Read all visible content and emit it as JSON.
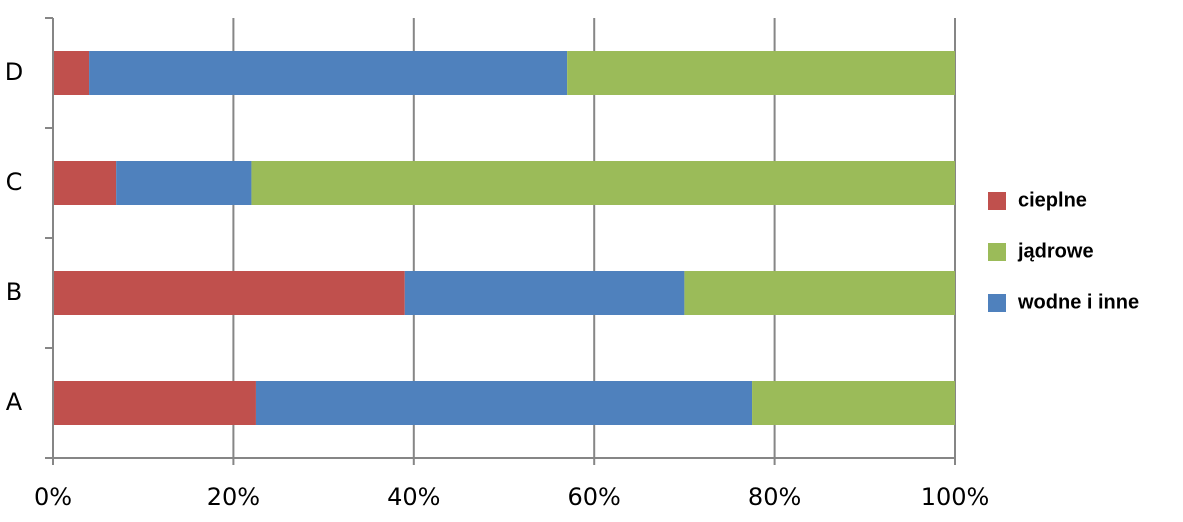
{
  "chart_data": {
    "type": "bar",
    "orientation": "horizontal",
    "stacked": true,
    "categories": [
      "A",
      "B",
      "C",
      "D"
    ],
    "series": [
      {
        "name": "cieplne",
        "color": "#c0504d",
        "values": [
          22.5,
          39,
          7,
          4
        ]
      },
      {
        "name": "wodne i inne",
        "color": "#4f81bd",
        "values": [
          55,
          31,
          15,
          53
        ]
      },
      {
        "name": "jądrowe",
        "color": "#9bbb59",
        "values": [
          22.5,
          30,
          78,
          43
        ]
      }
    ],
    "xlim": [
      0,
      100
    ],
    "xticks": [
      {
        "value": 0,
        "label": "0%"
      },
      {
        "value": 20,
        "label": "20%"
      },
      {
        "value": 40,
        "label": "40%"
      },
      {
        "value": 60,
        "label": "60%"
      },
      {
        "value": 80,
        "label": "80%"
      },
      {
        "value": 100,
        "label": "100%"
      }
    ],
    "grid": true,
    "legend": "right"
  }
}
